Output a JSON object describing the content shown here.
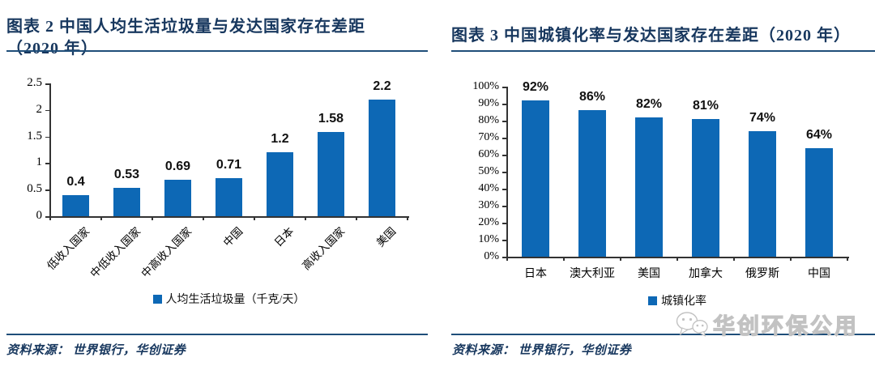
{
  "colors": {
    "bar_blue": "#0D68B5",
    "title_navy": "#17375E",
    "rule_blue": "#1F4E79",
    "axis_gray": "#333333",
    "watermark_gray": "#c2c2c2"
  },
  "left_panel": {
    "title_line1": "图表 2  中国人均生活垃圾量与发达国家存在差距",
    "title_line2": "（2020 年）",
    "source": "资料来源： 世界银行，华创证券"
  },
  "right_panel": {
    "title": "图表 3  中国城镇化率与发达国家存在差距（2020 年）",
    "source": "资料来源： 世界银行，华创证券"
  },
  "watermark": {
    "icon": "wechat-icon",
    "text": "华创环保公用"
  },
  "chart_data": [
    {
      "type": "bar",
      "title": "中国人均生活垃圾量与发达国家存在差距（2020 年）",
      "categories": [
        "低收入国家",
        "中低收入国家",
        "中高收入国家",
        "中国",
        "日本",
        "高收入国家",
        "美国"
      ],
      "values": [
        0.4,
        0.53,
        0.69,
        0.71,
        1.2,
        1.58,
        2.2
      ],
      "data_labels": [
        "0.4",
        "0.53",
        "0.69",
        "0.71",
        "1.2",
        "1.58",
        "2.2"
      ],
      "xlabel": "",
      "ylabel": "",
      "ylim": [
        0,
        2.5
      ],
      "ytick_labels_top_down": [
        "2.5",
        "2",
        "1.5",
        "1",
        "0.5",
        "0"
      ],
      "legend": [
        "人均生活垃圾量（千克/天）"
      ],
      "legend_position": "bottom",
      "grid": false,
      "bar_color": "#0D68B5",
      "x_label_rotation_deg": 45
    },
    {
      "type": "bar",
      "title": "中国城镇化率与发达国家存在差距（2020 年）",
      "categories": [
        "日本",
        "澳大利亚",
        "美国",
        "加拿大",
        "俄罗斯",
        "中国"
      ],
      "values": [
        92,
        86,
        82,
        81,
        74,
        64
      ],
      "data_labels": [
        "92%",
        "86%",
        "82%",
        "81%",
        "74%",
        "64%"
      ],
      "xlabel": "",
      "ylabel": "",
      "ylim": [
        0,
        100
      ],
      "ytick_labels_top_down": [
        "100%",
        "90%",
        "80%",
        "70%",
        "60%",
        "50%",
        "40%",
        "30%",
        "20%",
        "10%",
        "0%"
      ],
      "legend": [
        "城镇化率"
      ],
      "legend_position": "bottom",
      "grid": false,
      "bar_color": "#0D68B5",
      "x_label_rotation_deg": 0
    }
  ]
}
